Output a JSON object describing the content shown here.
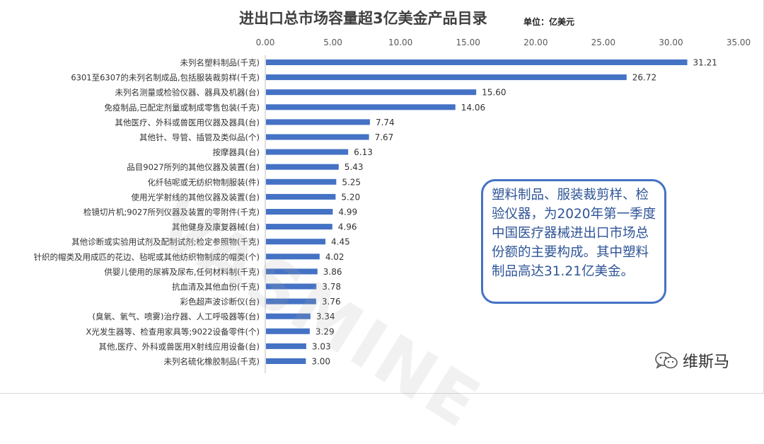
{
  "header": {
    "title": "进出口总市场容量超3亿美金产品目录",
    "unit": "单位：亿美元"
  },
  "callout": {
    "text": "塑料制品、服装裁剪样、检验仪器，为2020年第一季度中国医疗器械进出口市场总份额的主要构成。其中塑料制品高达31.21亿美金。"
  },
  "watermark": {
    "text": "VASMINE"
  },
  "brand": {
    "name": "维斯马",
    "icon": "wechat-icon"
  },
  "colors": {
    "bar": "#4472C4",
    "border": "#4472C4",
    "callout_text": "#2F5597"
  },
  "chart_data": {
    "type": "bar",
    "orientation": "horizontal",
    "title": "进出口总市场容量超3亿美金产品目录",
    "xlabel": "",
    "ylabel": "",
    "xlim": [
      0,
      35
    ],
    "ticks": [
      "0.00",
      "5.00",
      "10.00",
      "15.00",
      "20.00",
      "25.00",
      "30.00",
      "35.00"
    ],
    "tick_values": [
      0,
      5,
      10,
      15,
      20,
      25,
      30,
      35
    ],
    "axis_position": "top",
    "grid": false,
    "categories": [
      "未列名塑料制品(千克)",
      "6301至6307的未列名制成品,包括服装裁剪样(千克)",
      "未列名测量或检验仪器、器具及机器(台)",
      "免疫制品,已配定剂量或制成零售包装(千克)",
      "其他医疗、外科或兽医用仪器及器具(台)",
      "其他针、导管、插管及类似品(个)",
      "按摩器具(台)",
      "品目9027所列的其他仪器及装置(台)",
      "化纤毡呢或无纺织物制服装(件)",
      "使用光学射线的其他仪器及装置(台)",
      "检镜切片机;9027所列仪器及装置的零附件(千克)",
      "其他健身及康复器械(台)",
      "其他诊断或实验用试剂及配制试剂;检定参照物(千克)",
      "针织的帽类及用成匹的花边、毡呢或其他纺织物制成的帽类(个)",
      "供婴儿使用的尿裤及尿布,任何材料制(千克)",
      "抗血清及其他血份(千克)",
      "彩色超声波诊断仪(台)",
      "(臭氧、氧气、喷雾)治疗器、人工呼吸器等(台)",
      "X光发生器等、检查用家具等;9022设备零件(个)",
      "其他,医疗、外科或兽医用X射线应用设备(台)",
      "未列名硫化橡胶制品(千克)"
    ],
    "values": [
      31.21,
      26.72,
      15.6,
      14.06,
      7.74,
      7.67,
      6.13,
      5.43,
      5.25,
      5.2,
      4.99,
      4.96,
      4.45,
      4.02,
      3.86,
      3.78,
      3.76,
      3.34,
      3.29,
      3.03,
      3.0
    ],
    "value_labels": [
      "31.21",
      "26.72",
      "15.60",
      "14.06",
      "7.74",
      "7.67",
      "6.13",
      "5.43",
      "5.25",
      "5.20",
      "4.99",
      "4.96",
      "4.45",
      "4.02",
      "3.86",
      "3.78",
      "3.76",
      "3.34",
      "3.29",
      "3.03",
      "3.00"
    ]
  }
}
